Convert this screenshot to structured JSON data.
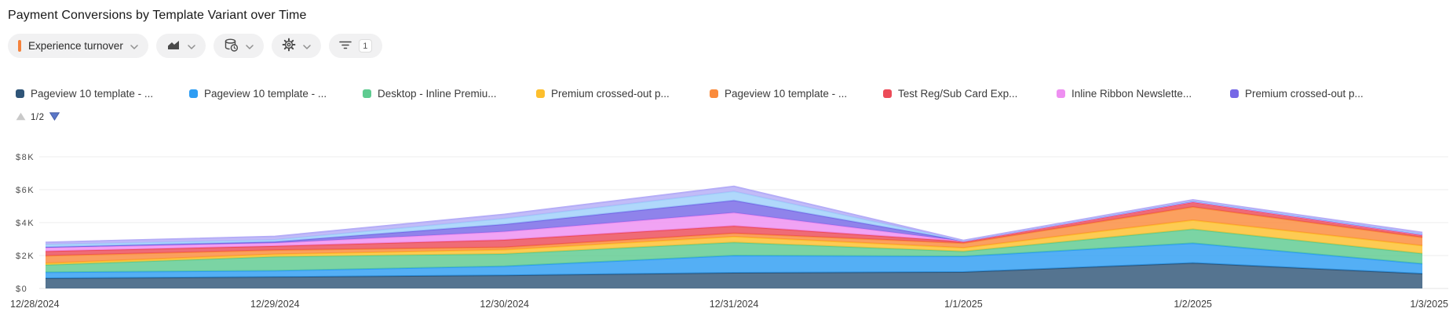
{
  "title": "Payment Conversions by Template Variant over Time",
  "toolbar": {
    "metric_selector": {
      "label": "Experience turnover",
      "accent_color": "#f5823c"
    },
    "chart_type_button": {
      "icon": "area-chart-icon"
    },
    "data_source_button": {
      "icon": "database-clock-icon"
    },
    "settings_button": {
      "icon": "gear-icon"
    },
    "filter_button": {
      "icon": "filter-icon",
      "badge_count": "1"
    }
  },
  "legend": {
    "pagination": {
      "current_page": "1/2",
      "up_color": "#c9c9c9",
      "down_color": "#5b77c7"
    }
  },
  "chart_data": {
    "type": "area",
    "stacked": true,
    "grid": "horizontal",
    "legend_position": "top",
    "title": "Payment Conversions by Template Variant over Time",
    "xlabel": "",
    "ylabel": "",
    "ylim": [
      0,
      8000
    ],
    "y_ticks": [
      "$0",
      "$2K",
      "$4K",
      "$6K",
      "$8K"
    ],
    "x": [
      "12/28/2024",
      "12/29/2024",
      "12/30/2024",
      "12/31/2024",
      "1/1/2025",
      "1/2/2025",
      "1/3/2025"
    ],
    "series": [
      {
        "label": "Pageview 10 template - ...",
        "color": "#2f5578",
        "values": [
          620,
          700,
          800,
          950,
          1000,
          1550,
          900
        ]
      },
      {
        "label": "Pageview 10 template - ...",
        "color": "#2e9df3",
        "values": [
          360,
          380,
          550,
          1050,
          950,
          1200,
          600
        ]
      },
      {
        "label": "Desktop - Inline Premiu...",
        "color": "#5ecb90",
        "values": [
          450,
          850,
          750,
          800,
          300,
          850,
          620
        ]
      },
      {
        "label": "Premium crossed-out p...",
        "color": "#fdbf2d",
        "values": [
          100,
          150,
          250,
          350,
          220,
          550,
          480
        ]
      },
      {
        "label": "Pageview 10 template - ...",
        "color": "#fa8b3c",
        "values": [
          450,
          250,
          150,
          200,
          280,
          800,
          500
        ]
      },
      {
        "label": "Test Reg/Sub Card Exp...",
        "color": "#ec4b58",
        "values": [
          280,
          250,
          450,
          450,
          100,
          300,
          150
        ]
      },
      {
        "label": "Inline Ribbon Newslette...",
        "color": "#ee8ff1",
        "values": [
          220,
          180,
          500,
          800,
          20,
          30,
          20
        ]
      },
      {
        "label": "Premium crossed-out p...",
        "color": "#7668e6",
        "values": [
          40,
          80,
          450,
          750,
          20,
          30,
          30
        ]
      },
      {
        "label": "",
        "color": "#9fd0fa",
        "values": [
          150,
          120,
          350,
          550,
          10,
          20,
          20
        ]
      },
      {
        "label": "",
        "color": "#b5adf7",
        "values": [
          130,
          200,
          250,
          300,
          20,
          50,
          80
        ]
      }
    ]
  }
}
